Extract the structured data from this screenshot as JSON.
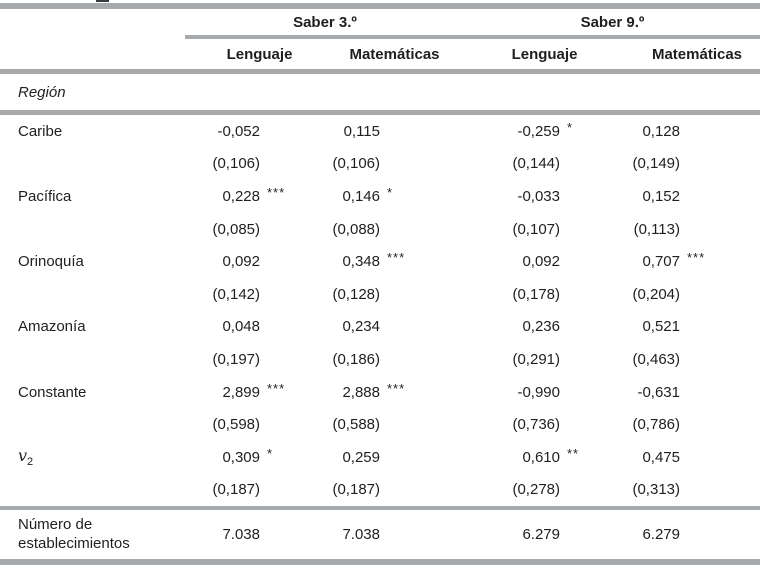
{
  "table": {
    "groups": [
      {
        "label": "Saber 3.º"
      },
      {
        "label": "Saber 9.º"
      }
    ],
    "sub_headers": [
      "Lenguaje",
      "Matemáticas",
      "Lenguaje",
      "Matemáticas"
    ],
    "section_label": "Región",
    "rows": [
      {
        "label": "Caribe",
        "coef": [
          "-0,052",
          "0,115",
          "-0,259",
          "0,128"
        ],
        "stars": [
          "",
          "",
          "*",
          ""
        ],
        "se": [
          "(0,106)",
          "(0,106)",
          "(0,144)",
          "(0,149)"
        ]
      },
      {
        "label": "Pacífica",
        "coef": [
          "0,228",
          "0,146",
          "-0,033",
          "0,152"
        ],
        "stars": [
          "***",
          "*",
          "",
          ""
        ],
        "se": [
          "(0,085)",
          "(0,088)",
          "(0,107)",
          "(0,113)"
        ]
      },
      {
        "label": "Orinoquía",
        "coef": [
          "0,092",
          "0,348",
          "0,092",
          "0,707"
        ],
        "stars": [
          "",
          "***",
          "",
          "***"
        ],
        "se": [
          "(0,142)",
          "(0,128)",
          "(0,178)",
          "(0,204)"
        ]
      },
      {
        "label": "Amazonía",
        "coef": [
          "0,048",
          "0,234",
          "0,236",
          "0,521"
        ],
        "stars": [
          "",
          "",
          "",
          ""
        ],
        "se": [
          "(0,197)",
          "(0,186)",
          "(0,291)",
          "(0,463)"
        ]
      },
      {
        "label": "Constante",
        "coef": [
          "2,899",
          "2,888",
          "-0,990",
          "-0,631"
        ],
        "stars": [
          "***",
          "***",
          "",
          ""
        ],
        "se": [
          "(0,598)",
          "(0,588)",
          "(0,736)",
          "(0,786)"
        ]
      },
      {
        "label": "v",
        "label_sub": "2",
        "coef": [
          "0,309",
          "0,259",
          "0,610",
          "0,475"
        ],
        "stars": [
          "*",
          "",
          "**",
          ""
        ],
        "se": [
          "(0,187)",
          "(0,187)",
          "(0,278)",
          "(0,313)"
        ]
      }
    ],
    "footer": {
      "label": "Número de establecimientos",
      "values": [
        "7.038",
        "7.038",
        "6.279",
        "6.279"
      ]
    }
  },
  "colors": {
    "rule_gray": "#a6aaad",
    "text": "#1f1f1f",
    "background": "#ffffff"
  }
}
